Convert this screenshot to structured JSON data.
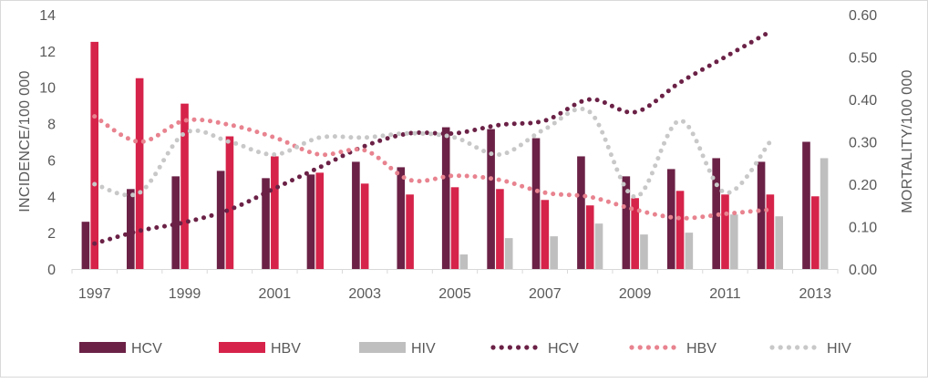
{
  "chart_data": {
    "type": "bar",
    "title": "",
    "ylabel": "INCIDENCE/100 000",
    "y2label": "MORTALITY/100 000",
    "ylim": [
      0,
      14
    ],
    "y2lim": [
      0,
      0.6
    ],
    "yticks": [
      "0",
      "2",
      "4",
      "6",
      "8",
      "10",
      "12",
      "14"
    ],
    "y2ticks": [
      "0.00",
      "0.10",
      "0.20",
      "0.30",
      "0.40",
      "0.50",
      "0.60"
    ],
    "categories": [
      "1997",
      "1998",
      "1999",
      "2000",
      "2001",
      "2002",
      "2003",
      "2004",
      "2005",
      "2006",
      "2007",
      "2008",
      "2009",
      "2010",
      "2011",
      "2012",
      "2013"
    ],
    "xtick_labels": [
      "1997",
      "",
      "1999",
      "",
      "2001",
      "",
      "2003",
      "",
      "2005",
      "",
      "2007",
      "",
      "2009",
      "",
      "2011",
      "",
      "2013"
    ],
    "bar_series": [
      {
        "name": "HCV",
        "color": "#6b2146",
        "values": [
          2.6,
          4.4,
          5.1,
          5.4,
          5.0,
          5.2,
          5.9,
          5.6,
          7.8,
          7.7,
          7.2,
          6.2,
          5.1,
          5.5,
          6.1,
          5.9,
          7.0
        ]
      },
      {
        "name": "HBV",
        "color": "#d6234a",
        "values": [
          12.5,
          10.5,
          9.1,
          7.3,
          6.2,
          5.3,
          4.7,
          4.1,
          4.5,
          4.4,
          3.8,
          3.5,
          3.9,
          4.3,
          4.1,
          4.1,
          4.0
        ]
      },
      {
        "name": "HIV",
        "color": "#bfbfbf",
        "values": [
          null,
          null,
          null,
          null,
          null,
          null,
          null,
          null,
          0.8,
          1.7,
          1.8,
          2.5,
          1.9,
          2.0,
          3.0,
          2.9,
          6.1
        ]
      }
    ],
    "line_series": [
      {
        "name": "HCV",
        "color": "#6b2146",
        "axis": "right",
        "values": [
          0.06,
          0.09,
          0.11,
          0.14,
          0.19,
          0.24,
          0.29,
          0.32,
          0.32,
          0.34,
          0.35,
          0.4,
          0.37,
          0.44,
          0.5,
          0.56,
          null
        ]
      },
      {
        "name": "HBV",
        "color": "#e8838f",
        "axis": "right",
        "values": [
          0.36,
          0.3,
          0.35,
          0.34,
          0.31,
          0.27,
          0.28,
          0.21,
          0.22,
          0.21,
          0.18,
          0.17,
          0.14,
          0.12,
          0.13,
          0.14,
          null
        ]
      },
      {
        "name": "HIV",
        "color": "#c8c8c8",
        "axis": "right",
        "values": [
          0.2,
          0.18,
          0.32,
          0.3,
          0.27,
          0.31,
          0.31,
          0.32,
          0.31,
          0.27,
          0.33,
          0.37,
          0.17,
          0.35,
          0.18,
          0.3,
          null
        ]
      }
    ],
    "legend": [
      {
        "label": "HCV",
        "kind": "bar",
        "color": "#6b2146"
      },
      {
        "label": "HBV",
        "kind": "bar",
        "color": "#d6234a"
      },
      {
        "label": "HIV",
        "kind": "bar",
        "color": "#bfbfbf"
      },
      {
        "label": "HCV",
        "kind": "dots",
        "color": "#6b2146"
      },
      {
        "label": "HBV",
        "kind": "dots",
        "color": "#e8838f"
      },
      {
        "label": "HIV",
        "kind": "dots",
        "color": "#c8c8c8"
      }
    ],
    "legend_position": "bottom",
    "grid": false
  }
}
